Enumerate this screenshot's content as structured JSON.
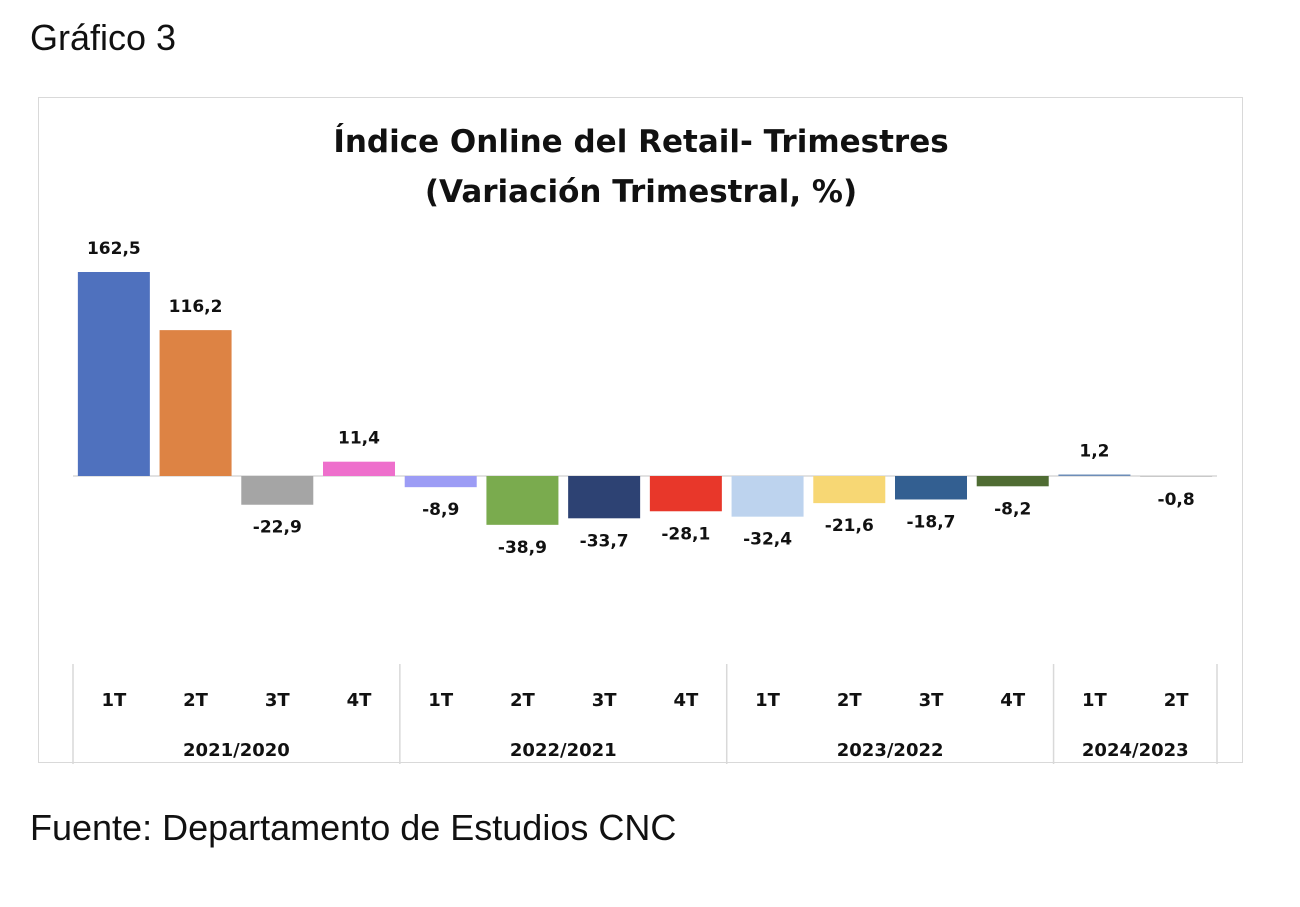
{
  "caption_top": "Gráfico 3",
  "caption_bottom": "Fuente: Departamento de Estudios CNC",
  "chart_data": {
    "type": "bar",
    "title": "Índice Online del Retail- Trimestres",
    "subtitle": "(Variación Trimestral, %)",
    "categories": [
      "1T",
      "2T",
      "3T",
      "4T",
      "1T",
      "2T",
      "3T",
      "4T",
      "1T",
      "2T",
      "3T",
      "4T",
      "1T",
      "2T"
    ],
    "groups": [
      {
        "label": "2021/2020",
        "count": 4
      },
      {
        "label": "2022/2021",
        "count": 4
      },
      {
        "label": "2023/2022",
        "count": 4
      },
      {
        "label": "2024/2023",
        "count": 2
      }
    ],
    "values": [
      162.5,
      116.2,
      -22.9,
      11.4,
      -8.9,
      -38.9,
      -33.7,
      -28.1,
      -32.4,
      -21.6,
      -18.7,
      -8.2,
      1.2,
      -0.8
    ],
    "value_labels": [
      "162,5",
      "116,2",
      "-22,9",
      "11,4",
      "-8,9",
      "-38,9",
      "-33,7",
      "-28,1",
      "-32,4",
      "-21,6",
      "-18,7",
      "-8,2",
      "1,2",
      "-0,8"
    ],
    "colors": [
      "#4f71be",
      "#dd8344",
      "#a5a5a5",
      "#ee6fcc",
      "#9c9cf5",
      "#7aab4e",
      "#2d4273",
      "#e8372a",
      "#bdd3ee",
      "#f7d774",
      "#335f91",
      "#4f6c33",
      "#6d8db8",
      "#c9c9c9"
    ],
    "ylim": [
      -162.5,
      162.5
    ],
    "grid": false,
    "legend": "none"
  }
}
